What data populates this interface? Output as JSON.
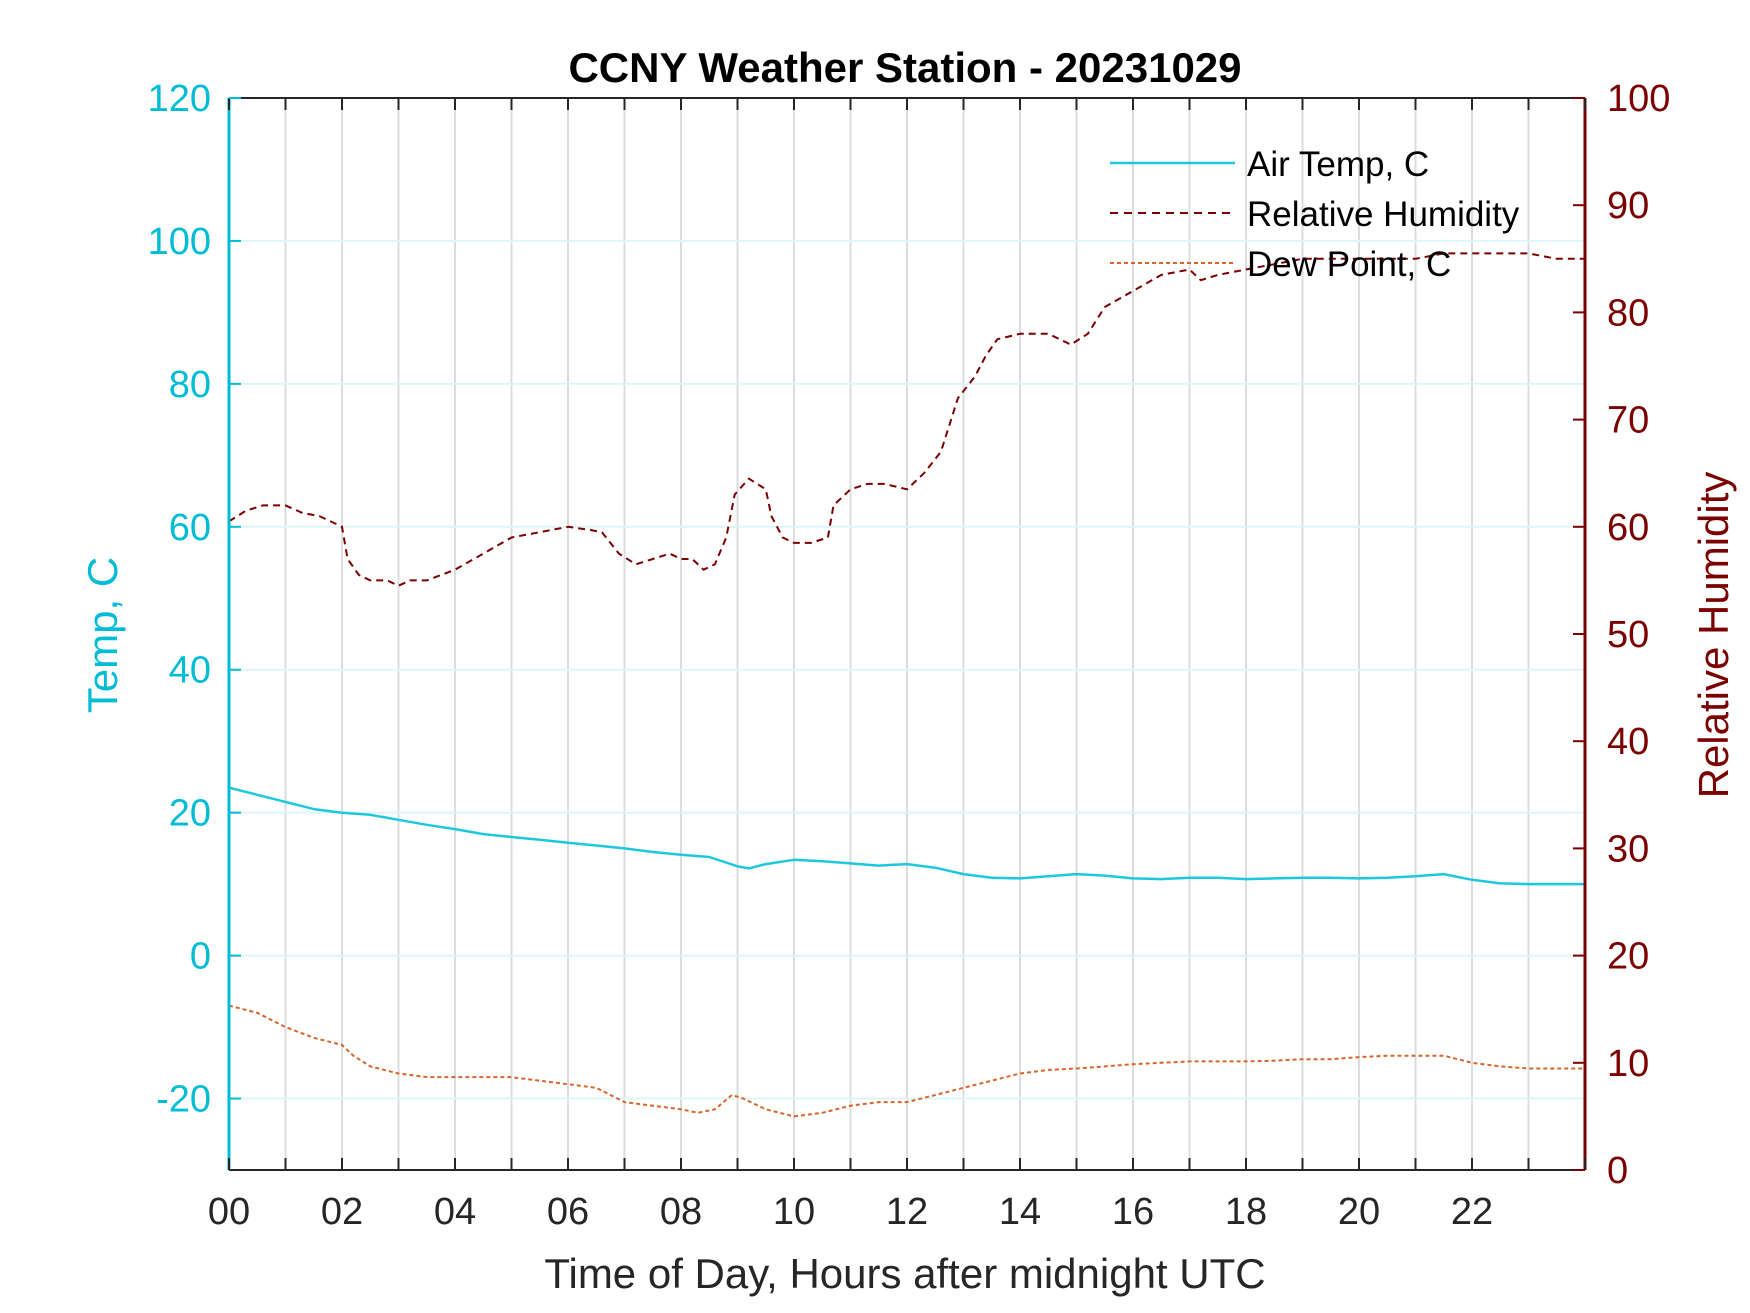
{
  "chart_data": {
    "type": "line",
    "title": "CCNY Weather Station - 20231029",
    "xlabel": "Time of Day, Hours after midnight UTC",
    "ylabel_left": "Temp, C",
    "ylabel_right": "Relative Humidity",
    "xlim": [
      0,
      24
    ],
    "ylim_left": [
      -30,
      120
    ],
    "ylim_right": [
      0,
      100
    ],
    "x_ticks": [
      "00",
      "02",
      "04",
      "06",
      "08",
      "10",
      "12",
      "14",
      "16",
      "18",
      "20",
      "22"
    ],
    "y_ticks_left": [
      "-20",
      "0",
      "20",
      "40",
      "60",
      "80",
      "100",
      "120"
    ],
    "y_ticks_right": [
      "0",
      "10",
      "20",
      "30",
      "40",
      "50",
      "60",
      "70",
      "80",
      "90",
      "100"
    ],
    "grid": true,
    "legend_position": "top-right",
    "colors": {
      "air_temp": "#1ec8dc",
      "humidity": "#7b0000",
      "dew_point": "#d8652a",
      "left_axis": "#00bcd4",
      "right_axis": "#7b0000",
      "vgrid": "#d9dde0",
      "hgrid": "#dff4f8"
    },
    "series": [
      {
        "name": "Air Temp, C",
        "axis": "left",
        "style": "solid",
        "x": [
          0,
          0.5,
          1,
          1.5,
          2,
          2.5,
          3,
          3.5,
          4,
          4.5,
          5,
          5.5,
          6,
          6.5,
          7,
          7.5,
          8,
          8.5,
          9,
          9.2,
          9.5,
          10,
          10.5,
          11,
          11.5,
          12,
          12.5,
          13,
          13.5,
          14,
          14.5,
          15,
          15.5,
          16,
          16.5,
          17,
          17.5,
          18,
          18.5,
          19,
          19.5,
          20,
          20.5,
          21,
          21.5,
          22,
          22.5,
          23,
          23.5,
          24
        ],
        "values": [
          23.5,
          22.5,
          21.5,
          20.5,
          20,
          19.7,
          19,
          18.3,
          17.7,
          17,
          16.6,
          16.2,
          15.8,
          15.4,
          15,
          14.5,
          14.1,
          13.8,
          12.5,
          12.2,
          12.8,
          13.4,
          13.2,
          12.9,
          12.6,
          12.8,
          12.3,
          11.4,
          10.9,
          10.8,
          11.1,
          11.4,
          11.2,
          10.8,
          10.7,
          10.9,
          10.9,
          10.7,
          10.8,
          10.9,
          10.9,
          10.8,
          10.9,
          11.1,
          11.4,
          10.6,
          10.1,
          10,
          10,
          10
        ]
      },
      {
        "name": "Relative Humidity",
        "axis": "right",
        "style": "dashed",
        "x": [
          0,
          0.3,
          0.6,
          1,
          1.3,
          1.6,
          2,
          2.1,
          2.3,
          2.5,
          2.8,
          3,
          3.2,
          3.5,
          4,
          4.5,
          5,
          5.5,
          6,
          6.4,
          6.6,
          6.9,
          7.2,
          7.5,
          7.8,
          8,
          8.2,
          8.4,
          8.6,
          8.8,
          8.95,
          9.2,
          9.5,
          9.6,
          9.8,
          10,
          10.3,
          10.6,
          10.7,
          11,
          11.3,
          11.6,
          12,
          12.3,
          12.6,
          12.9,
          13.2,
          13.4,
          13.6,
          14,
          14.5,
          14.9,
          15.2,
          15.5,
          16,
          16.5,
          17,
          17.2,
          17.5,
          18,
          18.5,
          19,
          19.5,
          20,
          20.5,
          21,
          21.5,
          22,
          22.5,
          23,
          23.5,
          24
        ],
        "values": [
          60.5,
          61.5,
          62,
          62,
          61.3,
          61,
          60,
          57,
          55.5,
          55,
          55,
          54.5,
          55,
          55,
          56,
          57.5,
          59,
          59.5,
          60,
          59.7,
          59.5,
          57.5,
          56.5,
          57,
          57.5,
          57,
          57,
          56,
          56.5,
          59,
          63,
          64.5,
          63.5,
          61,
          59,
          58.5,
          58.5,
          59,
          62,
          63.5,
          64,
          64,
          63.5,
          65,
          67,
          72,
          74,
          76,
          77.5,
          78,
          78,
          77,
          78,
          80.5,
          82,
          83.5,
          84,
          83,
          83.5,
          84,
          84.5,
          85,
          85,
          85,
          85,
          85,
          85.5,
          85.5,
          85.5,
          85.5,
          85,
          85
        ]
      },
      {
        "name": "Dew Point, C",
        "axis": "left",
        "style": "dashed",
        "x": [
          0,
          0.5,
          1,
          1.5,
          2,
          2.2,
          2.5,
          3,
          3.5,
          4,
          4.5,
          5,
          5.5,
          6,
          6.5,
          7,
          7.5,
          8,
          8.3,
          8.6,
          8.9,
          9.1,
          9.5,
          10,
          10.5,
          11,
          11.5,
          12,
          12.5,
          13,
          13.5,
          14,
          14.5,
          15,
          15.5,
          16,
          16.5,
          17,
          17.5,
          18,
          18.5,
          19,
          19.5,
          20,
          20.5,
          21,
          21.5,
          22,
          22.5,
          23,
          23.5,
          24
        ],
        "values": [
          -7,
          -8,
          -10,
          -11.5,
          -12.5,
          -14,
          -15.5,
          -16.5,
          -17,
          -17,
          -17,
          -17,
          -17.5,
          -18,
          -18.5,
          -20.5,
          -21,
          -21.5,
          -22,
          -21.5,
          -19.5,
          -20,
          -21.5,
          -22.5,
          -22,
          -21,
          -20.5,
          -20.5,
          -19.5,
          -18.5,
          -17.5,
          -16.5,
          -16,
          -15.8,
          -15.5,
          -15.2,
          -15,
          -14.8,
          -14.8,
          -14.8,
          -14.7,
          -14.5,
          -14.5,
          -14.2,
          -14,
          -14,
          -14,
          -15,
          -15.5,
          -15.8,
          -15.8,
          -15.8
        ]
      }
    ]
  }
}
